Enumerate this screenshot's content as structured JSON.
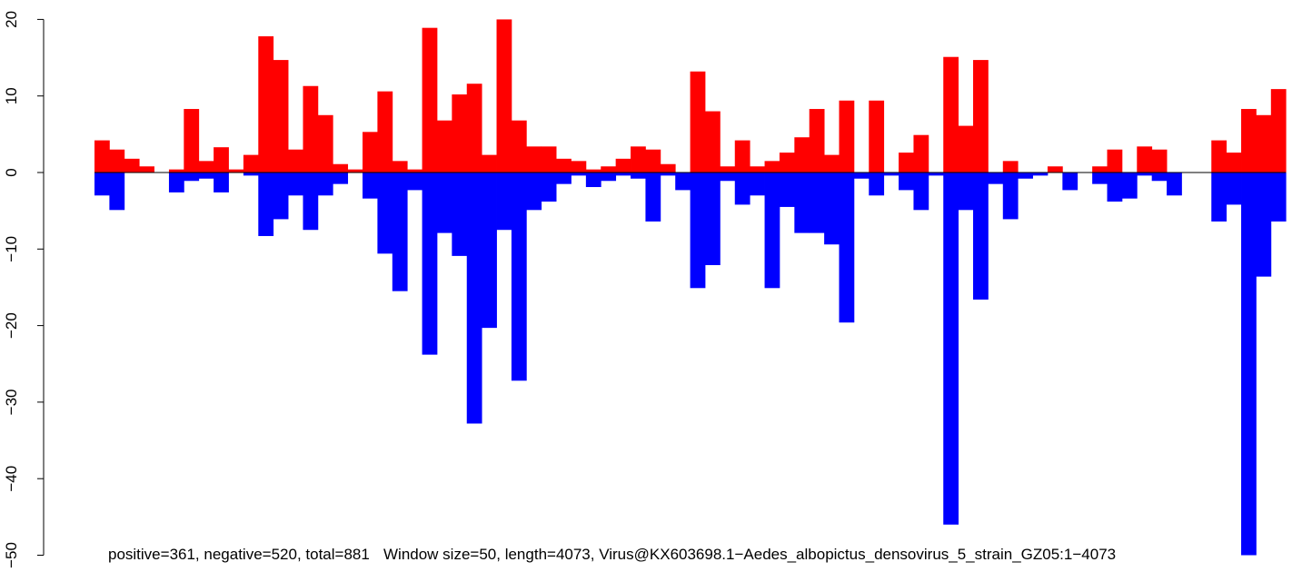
{
  "chart_data": {
    "type": "bar",
    "footer": {
      "stats": "positive=361, negative=520, total=881",
      "window": "Window size=50, length=4073, Virus@KX603698.1−Aedes_albopictus_densovirus_5_strain_GZ05:1−4073"
    },
    "ylim": [
      -50,
      20
    ],
    "yticks": [
      20,
      10,
      0,
      -10,
      -20,
      -30,
      -40,
      -50
    ],
    "ytick_labels": [
      "20",
      "10",
      "0",
      "−10",
      "−20",
      "−30",
      "−40",
      "−50"
    ],
    "grid": false,
    "colors": {
      "positive": "#ff0000",
      "negative": "#0000ff",
      "baseline": "#000000"
    },
    "positive": [
      4.2,
      3.0,
      1.8,
      0.8,
      0,
      0.4,
      8.3,
      1.5,
      3.3,
      0.4,
      2.3,
      17.8,
      14.7,
      3.0,
      11.3,
      7.5,
      1.1,
      0.4,
      5.3,
      10.6,
      1.5,
      0.4,
      18.9,
      6.8,
      10.2,
      11.6,
      2.3,
      20.0,
      6.8,
      3.4,
      3.4,
      1.8,
      1.5,
      0.4,
      0.8,
      1.8,
      3.4,
      3.0,
      1.1,
      0,
      13.2,
      8.0,
      0.8,
      4.2,
      0.8,
      1.5,
      2.6,
      4.6,
      8.3,
      2.3,
      9.4,
      0,
      9.4,
      0,
      2.6,
      4.9,
      0,
      15.1,
      6.1,
      14.7,
      0,
      1.5,
      0,
      0,
      0.8,
      0,
      0,
      0.8,
      3.0,
      0,
      3.4,
      3.0,
      0,
      0,
      0,
      4.2,
      2.6,
      8.3,
      7.5,
      10.9
    ],
    "negative": [
      -3.0,
      -4.9,
      0,
      0,
      0,
      -2.6,
      -1.1,
      -0.8,
      -2.6,
      0,
      -0.4,
      -8.3,
      -6.1,
      -3.0,
      -7.5,
      -3.0,
      -1.5,
      0,
      -3.4,
      -10.6,
      -15.5,
      -2.3,
      -23.8,
      -7.9,
      -10.9,
      -32.8,
      -20.3,
      -7.5,
      -27.2,
      -4.9,
      -3.8,
      -1.5,
      -0.4,
      -1.9,
      -1.1,
      -0.4,
      -0.8,
      -6.4,
      -0.4,
      -2.3,
      -15.1,
      -12.1,
      -1.1,
      -4.2,
      -3.0,
      -15.1,
      -4.5,
      -7.9,
      -7.9,
      -9.4,
      -19.6,
      -0.8,
      -3.0,
      -0.4,
      -2.3,
      -4.9,
      -0.4,
      -46.0,
      -4.9,
      -16.6,
      -1.5,
      -6.1,
      -0.8,
      -0.4,
      0,
      -2.3,
      0,
      -1.5,
      -3.8,
      -3.4,
      -0.4,
      -1.1,
      -3.0,
      0,
      0,
      -6.4,
      -4.2,
      -50.0,
      -13.6,
      -6.4
    ]
  }
}
